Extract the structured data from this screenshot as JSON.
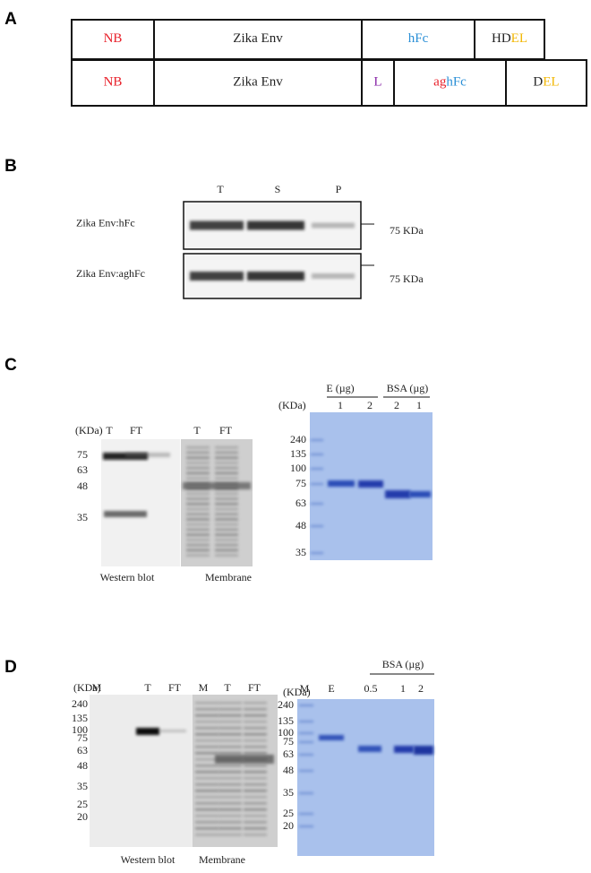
{
  "panel_a": {
    "label": "A",
    "constructs": [
      {
        "segments": [
          {
            "parts": [
              {
                "text": "NB",
                "color": "#e8202a"
              }
            ]
          },
          {
            "parts": [
              {
                "text": "Zika Env",
                "color": "#222222"
              }
            ]
          },
          {
            "parts": [
              {
                "text": "hFc",
                "color": "#2a8fd6"
              }
            ]
          },
          {
            "parts": [
              {
                "text": "HD",
                "color": "#222222"
              },
              {
                "text": "EL",
                "color": "#f2b705"
              }
            ]
          }
        ]
      },
      {
        "segments": [
          {
            "parts": [
              {
                "text": "NB",
                "color": "#e8202a"
              }
            ]
          },
          {
            "parts": [
              {
                "text": "Zika Env",
                "color": "#222222"
              }
            ]
          },
          {
            "parts": [
              {
                "text": "L",
                "color": "#8a2aa8"
              }
            ]
          },
          {
            "parts": [
              {
                "text": "ag",
                "color": "#e8202a"
              },
              {
                "text": "hFc",
                "color": "#2a8fd6"
              }
            ]
          },
          {
            "parts": [
              {
                "text": "D",
                "color": "#222222"
              },
              {
                "text": "EL",
                "color": "#f2b705"
              }
            ]
          }
        ]
      }
    ]
  },
  "panel_b": {
    "label": "B",
    "lanes": [
      "T",
      "S",
      "P"
    ],
    "rows": [
      {
        "name": "Zika Env:hFc",
        "marker": "75 KDa"
      },
      {
        "name": "Zika Env:aghFc",
        "marker": "75 KDa"
      }
    ]
  },
  "panel_c": {
    "label": "C",
    "left": {
      "unit": "(KDa)",
      "lanes": [
        "T",
        "FT",
        "T",
        "FT"
      ],
      "markers": [
        75,
        63,
        48,
        35
      ],
      "captions": [
        "Western blot",
        "Membrane"
      ]
    },
    "right": {
      "groups": [
        "E (µg)",
        "BSA (µg)"
      ],
      "unit": "(KDa)",
      "lanes": [
        1,
        2,
        2,
        1
      ],
      "markers": [
        240,
        135,
        100,
        75,
        63,
        48,
        35
      ]
    }
  },
  "panel_d": {
    "label": "D",
    "left": {
      "unit": "(KDa)",
      "lanes": [
        "M",
        "T",
        "FT",
        "M",
        "T",
        "FT"
      ],
      "markers": [
        240,
        135,
        100,
        75,
        63,
        48,
        35,
        25,
        20
      ],
      "captions": [
        "Western blot",
        "Membrane"
      ]
    },
    "right": {
      "group": "BSA (µg)",
      "unit": "(KDa)",
      "lanes": [
        "M",
        "E",
        0.5,
        1,
        2
      ],
      "markers": [
        240,
        135,
        100,
        75,
        63,
        48,
        35,
        25,
        20
      ]
    }
  }
}
